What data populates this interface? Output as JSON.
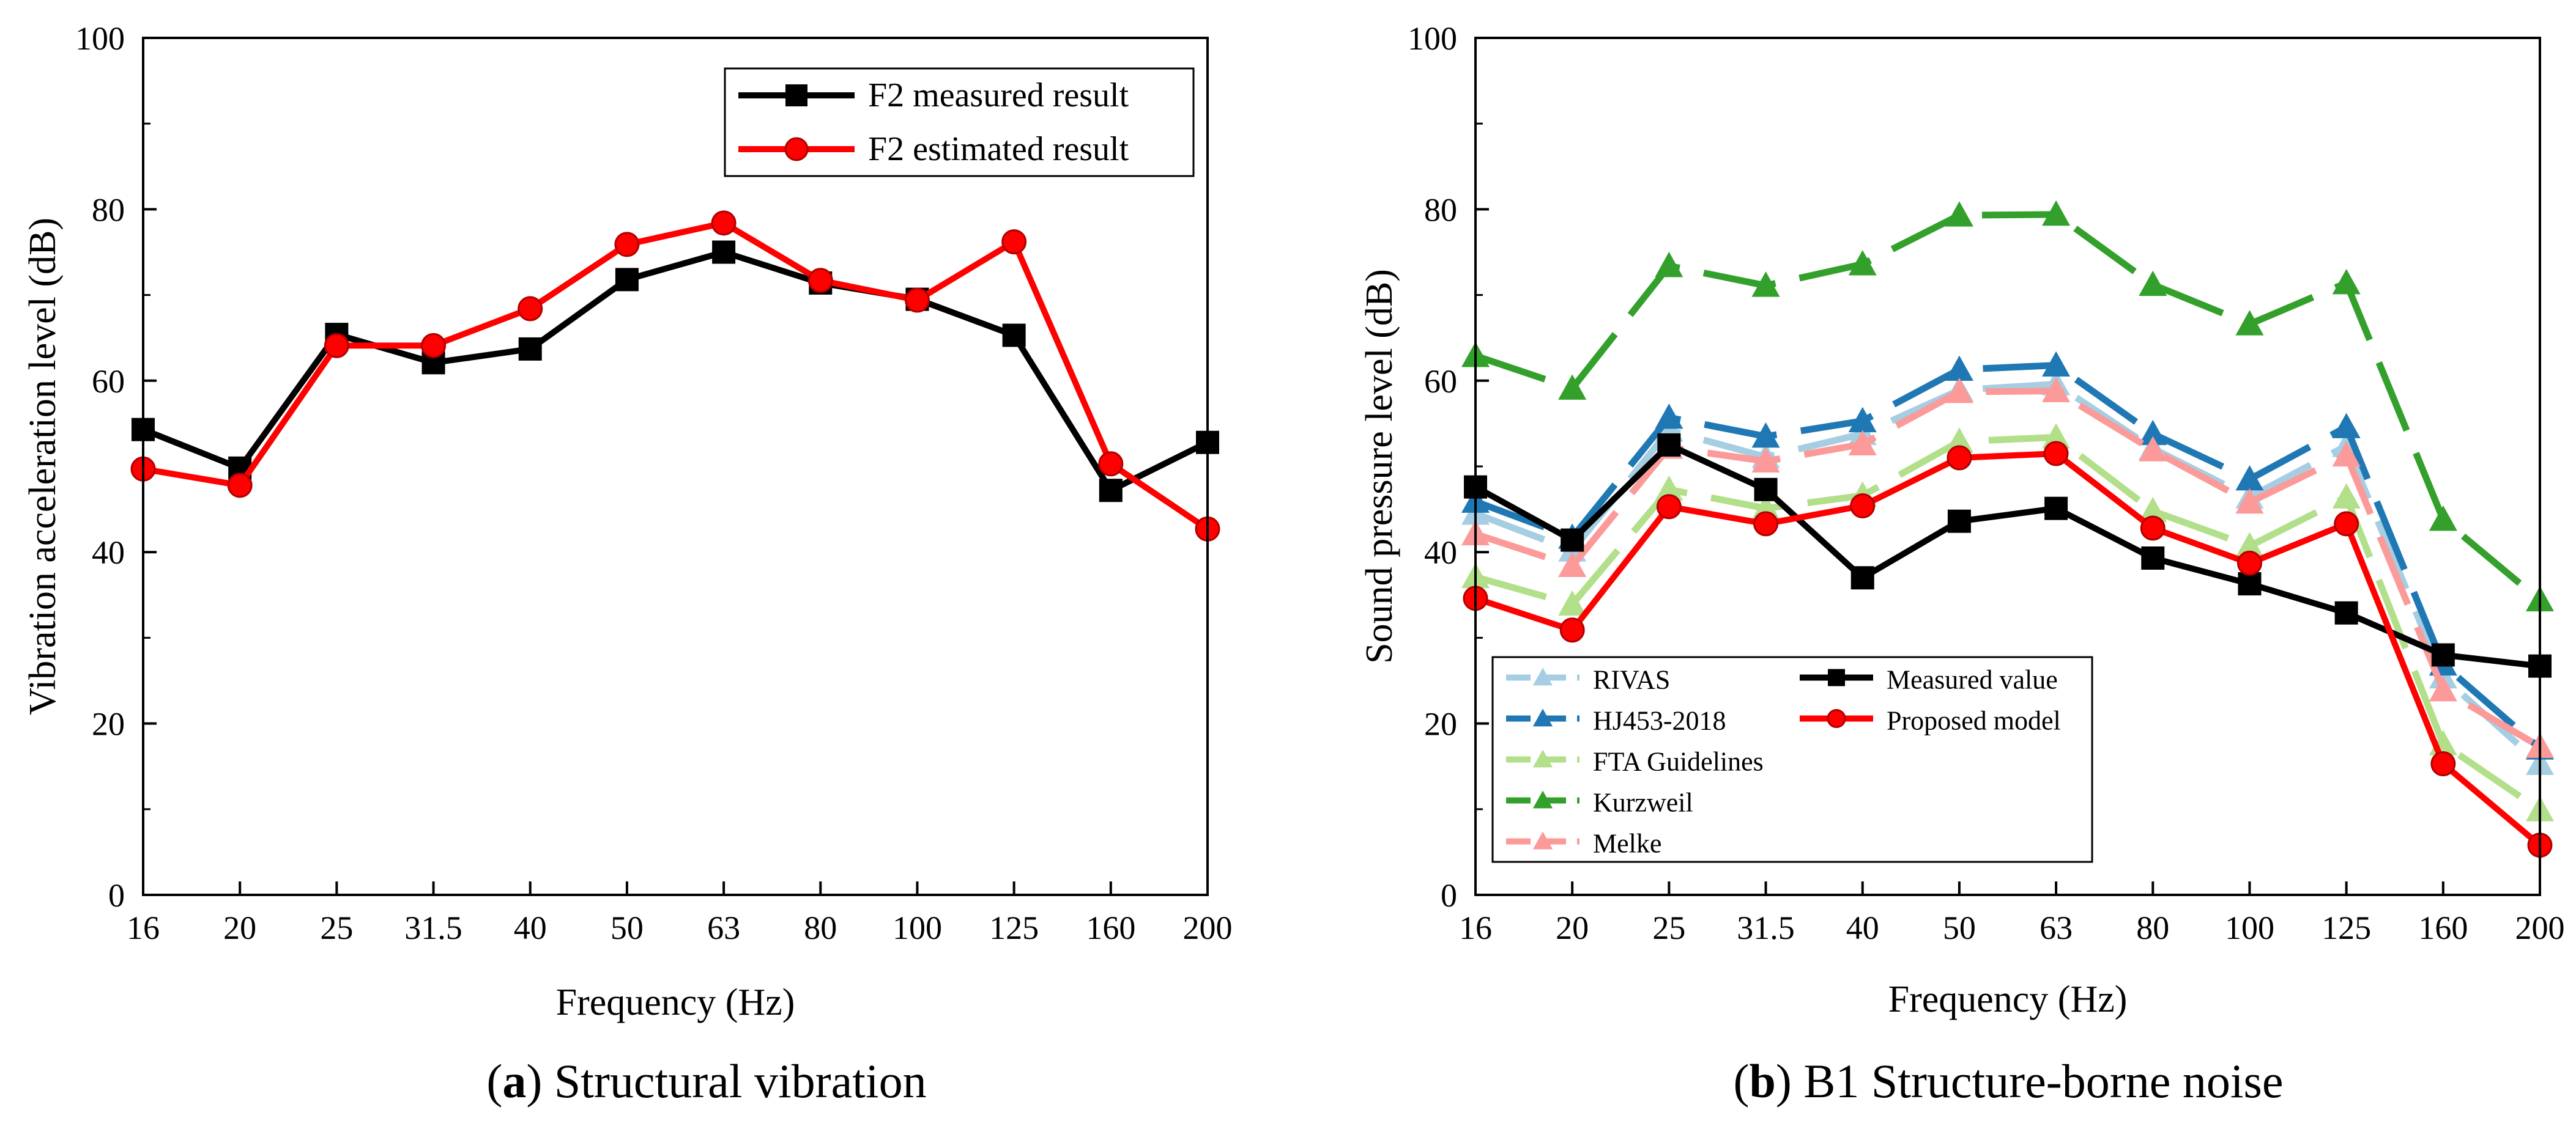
{
  "chart_data": [
    {
      "type": "line",
      "panel": "a",
      "caption_letter": "a",
      "caption_text": ") Structural vibration",
      "caption_open": "(",
      "xlabel": "Frequency (Hz)",
      "ylabel": "Vibration acceleration level (dB)",
      "categories": [
        "16",
        "20",
        "25",
        "31.5",
        "40",
        "50",
        "63",
        "80",
        "100",
        "125",
        "160",
        "200"
      ],
      "ylim": [
        0,
        100
      ],
      "yticks": [
        "0",
        "20",
        "40",
        "60",
        "80",
        "100"
      ],
      "legend_position": "top-right",
      "series": [
        {
          "name": "F2 measured result",
          "color": "#000000",
          "marker": "square",
          "values": [
            54.3,
            49.8,
            65.4,
            62.1,
            63.7,
            71.8,
            75.0,
            71.4,
            69.5,
            65.3,
            47.2,
            52.8
          ]
        },
        {
          "name": "F2 estimated result",
          "color": "#ff0000",
          "marker": "circle",
          "values": [
            49.7,
            47.8,
            64.1,
            64.1,
            68.4,
            75.9,
            78.4,
            71.7,
            69.4,
            76.2,
            50.3,
            42.7
          ]
        }
      ]
    },
    {
      "type": "line",
      "panel": "b",
      "caption_letter": "b",
      "caption_text": ") B1 Structure-borne noise",
      "caption_open": "(",
      "xlabel": "Frequency (Hz)",
      "ylabel": "Sound pressure level (dB)",
      "categories": [
        "16",
        "20",
        "25",
        "31.5",
        "40",
        "50",
        "63",
        "80",
        "100",
        "125",
        "160",
        "200"
      ],
      "ylim": [
        0,
        100
      ],
      "yticks": [
        "0",
        "20",
        "40",
        "60",
        "80",
        "100"
      ],
      "legend_position": "bottom-left",
      "series": [
        {
          "name": "RIVAS",
          "color": "#a6cee3",
          "marker": "triangle",
          "dashed": true,
          "values": [
            44.5,
            40.2,
            54.2,
            51.1,
            53.8,
            58.9,
            59.6,
            52.1,
            46.4,
            52.4,
            25.4,
            15.3
          ]
        },
        {
          "name": "HJ453-2018",
          "color": "#1f78b4",
          "marker": "triangle",
          "dashed": true,
          "values": [
            45.9,
            41.7,
            55.7,
            53.5,
            55.3,
            61.3,
            61.8,
            53.8,
            48.5,
            54.6,
            26.9,
            17.1
          ]
        },
        {
          "name": "FTA Guidelines",
          "color": "#b2df8a",
          "marker": "triangle",
          "dashed": true,
          "values": [
            37.1,
            33.9,
            47.3,
            45.1,
            46.6,
            52.9,
            53.4,
            44.8,
            40.7,
            46.4,
            17.6,
            9.9
          ]
        },
        {
          "name": "Kurzweil",
          "color": "#33a02c",
          "marker": "triangle",
          "dashed": true,
          "values": [
            62.9,
            59.1,
            73.4,
            71.1,
            73.6,
            79.3,
            79.4,
            71.2,
            66.6,
            71.4,
            43.8,
            34.4
          ]
        },
        {
          "name": "Melke",
          "color": "#fb9a99",
          "marker": "triangle",
          "dashed": true,
          "values": [
            42.1,
            38.4,
            52.2,
            50.6,
            52.6,
            58.7,
            58.8,
            51.9,
            45.8,
            51.3,
            23.9,
            17.3
          ]
        },
        {
          "name": "Measured value",
          "color": "#000000",
          "marker": "square",
          "dashed": false,
          "values": [
            47.6,
            41.4,
            52.5,
            47.3,
            37.0,
            43.6,
            45.1,
            39.3,
            36.3,
            32.9,
            28.0,
            26.7
          ]
        },
        {
          "name": "Proposed model",
          "color": "#ff0000",
          "marker": "circle",
          "dashed": false,
          "values": [
            34.6,
            30.9,
            45.3,
            43.3,
            45.4,
            51.0,
            51.5,
            42.8,
            38.7,
            43.3,
            15.3,
            5.8
          ]
        }
      ]
    }
  ]
}
